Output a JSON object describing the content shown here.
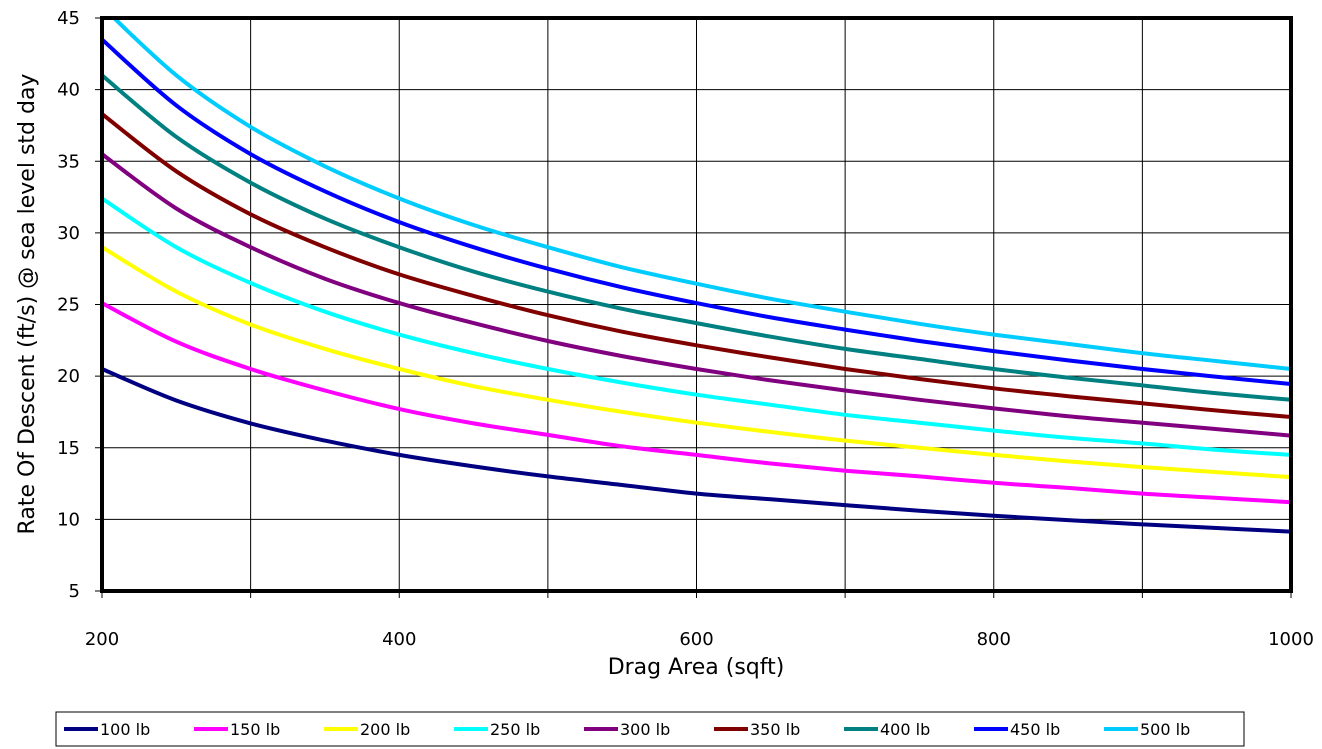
{
  "chart_data": {
    "type": "line",
    "title": "",
    "xlabel": "Drag Area (sqft)",
    "ylabel": "Rate Of Descent (ft/s) @ sea level std day",
    "xlim": [
      200,
      1000
    ],
    "ylim": [
      5,
      45
    ],
    "x_major_ticks": [
      200,
      400,
      600,
      800,
      1000
    ],
    "x_minor_ticks": [
      300,
      500,
      700,
      900
    ],
    "y_ticks": [
      5,
      10,
      15,
      20,
      25,
      30,
      35,
      40,
      45
    ],
    "grid": true,
    "legend_position": "bottom",
    "x": [
      200,
      250,
      300,
      350,
      400,
      450,
      500,
      550,
      600,
      650,
      700,
      750,
      800,
      850,
      900,
      950,
      1000
    ],
    "series": [
      {
        "name": "100 lb",
        "color": "#000080",
        "values": [
          20.5,
          18.3,
          16.7,
          15.5,
          14.5,
          13.7,
          13.0,
          12.4,
          11.8,
          11.4,
          11.0,
          10.6,
          10.25,
          9.95,
          9.65,
          9.4,
          9.15
        ]
      },
      {
        "name": "150 lb",
        "color": "#ff00ff",
        "values": [
          25.1,
          22.4,
          20.5,
          19.0,
          17.7,
          16.7,
          15.9,
          15.1,
          14.5,
          13.9,
          13.4,
          13.0,
          12.55,
          12.2,
          11.8,
          11.5,
          11.2
        ]
      },
      {
        "name": "200 lb",
        "color": "#ffff00",
        "values": [
          29.0,
          25.9,
          23.6,
          21.9,
          20.5,
          19.3,
          18.35,
          17.5,
          16.75,
          16.1,
          15.5,
          15.0,
          14.5,
          14.05,
          13.65,
          13.3,
          12.95
        ]
      },
      {
        "name": "250 lb",
        "color": "#00ffff",
        "values": [
          32.4,
          29.0,
          26.5,
          24.5,
          22.9,
          21.6,
          20.5,
          19.55,
          18.7,
          18.0,
          17.3,
          16.75,
          16.2,
          15.7,
          15.3,
          14.85,
          14.5
        ]
      },
      {
        "name": "300 lb",
        "color": "#800080",
        "values": [
          35.5,
          31.7,
          29.0,
          26.8,
          25.1,
          23.7,
          22.45,
          21.4,
          20.5,
          19.7,
          19.0,
          18.35,
          17.75,
          17.2,
          16.75,
          16.3,
          15.85
        ]
      },
      {
        "name": "350 lb",
        "color": "#800000",
        "values": [
          38.3,
          34.3,
          31.3,
          29.0,
          27.1,
          25.6,
          24.25,
          23.1,
          22.15,
          21.3,
          20.5,
          19.8,
          19.15,
          18.6,
          18.1,
          17.6,
          17.15
        ]
      },
      {
        "name": "400 lb",
        "color": "#008080",
        "values": [
          41.0,
          36.7,
          33.5,
          31.0,
          29.0,
          27.3,
          25.9,
          24.7,
          23.7,
          22.75,
          21.9,
          21.2,
          20.5,
          19.9,
          19.35,
          18.8,
          18.35
        ]
      },
      {
        "name": "450 lb",
        "color": "#0000ff",
        "values": [
          43.5,
          38.9,
          35.5,
          32.9,
          30.75,
          29.0,
          27.5,
          26.2,
          25.1,
          24.1,
          23.25,
          22.45,
          21.75,
          21.1,
          20.5,
          19.95,
          19.45
        ]
      },
      {
        "name": "500 lb",
        "color": "#00ccff",
        "values": [
          45.8,
          41.0,
          37.4,
          34.65,
          32.4,
          30.55,
          29.0,
          27.6,
          26.45,
          25.4,
          24.5,
          23.65,
          22.9,
          22.25,
          21.6,
          21.05,
          20.5
        ]
      }
    ]
  }
}
